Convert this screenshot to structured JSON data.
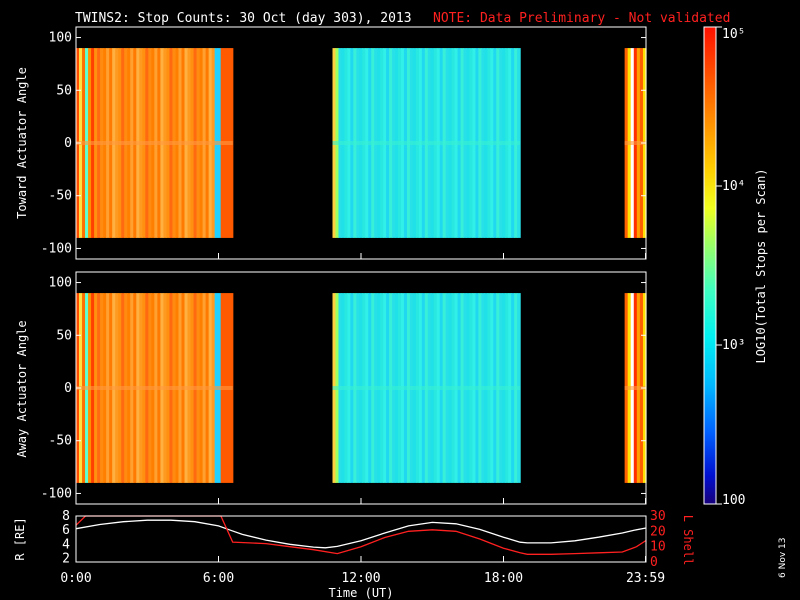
{
  "title": "TWINS2: Stop Counts: 30 Oct (day 303), 2013",
  "note": "NOTE: Data Preliminary - Not validated",
  "date_stamp": "6 Nov 13",
  "colors": {
    "background": "#000000",
    "axes": "#ffffff",
    "note": "#ff2020",
    "r_line": "#ffffff",
    "l_line": "#ff2020"
  },
  "colorbar": {
    "label": "LOG10(Total Stops per Scan)",
    "ticks": [
      {
        "text": "10⁵",
        "value": 100000
      },
      {
        "text": "10⁴",
        "value": 10000
      },
      {
        "text": "10³",
        "value": 1000
      },
      {
        "text": "100",
        "value": 100
      }
    ],
    "range": [
      100,
      100000
    ],
    "scale": "log"
  },
  "chart_data": [
    {
      "type": "heatmap",
      "ylabel": "Toward Actuator Angle",
      "ylim": [
        -110,
        110
      ],
      "yticks": [
        "100",
        "50",
        "0",
        "-50",
        "-100"
      ],
      "data_blocks": [
        {
          "start_h": 0.0,
          "end_h": 6.6,
          "level": "10⁴–10⁵"
        },
        {
          "start_h": 10.8,
          "end_h": 18.7,
          "level": "≈10³"
        },
        {
          "start_h": 23.1,
          "end_h": 24.0,
          "level": "10⁴–10⁵"
        }
      ]
    },
    {
      "type": "heatmap",
      "ylabel": "Away Actuator Angle",
      "ylim": [
        -110,
        110
      ],
      "yticks": [
        "100",
        "50",
        "0",
        "-50",
        "-100"
      ],
      "data_blocks": [
        {
          "start_h": 0.0,
          "end_h": 6.6,
          "level": "10⁴–10⁵"
        },
        {
          "start_h": 10.8,
          "end_h": 18.7,
          "level": "≈10³"
        },
        {
          "start_h": 23.1,
          "end_h": 24.0,
          "level": "10⁴–10⁵"
        }
      ]
    },
    {
      "type": "line",
      "xlabel": "Time (UT)",
      "ylabel_left": "R [RE]",
      "ylabel_right": "L Shell",
      "yticks_left": [
        "8",
        "6",
        "4",
        "2"
      ],
      "yticks_right": [
        "30",
        "20",
        "10",
        "0"
      ],
      "ylim_left": [
        1.5,
        8
      ],
      "ylim_right": [
        0,
        30
      ],
      "xlim": [
        0,
        24
      ],
      "xticks": [
        "0:00",
        "6:00",
        "12:00",
        "18:00",
        "23:59"
      ],
      "series": [
        {
          "axis": "left",
          "x": [
            0,
            1,
            2,
            3,
            4,
            5,
            6,
            6.5,
            7,
            8,
            9,
            10,
            10.5,
            11,
            12,
            13,
            14,
            15,
            16,
            17,
            18,
            18.7,
            19,
            20,
            21,
            22,
            23,
            23.5,
            24
          ],
          "y": [
            6.2,
            6.8,
            7.2,
            7.4,
            7.4,
            7.2,
            6.6,
            6.0,
            5.4,
            4.6,
            4.0,
            3.6,
            3.5,
            3.7,
            4.5,
            5.6,
            6.6,
            7.1,
            6.9,
            6.1,
            5.0,
            4.3,
            4.2,
            4.2,
            4.5,
            5.0,
            5.6,
            6.0,
            6.3
          ]
        },
        {
          "axis": "right",
          "x": [
            0.0,
            0.4,
            6.1,
            6.6,
            8,
            9,
            10,
            11,
            12,
            13,
            14,
            15,
            16,
            17,
            18,
            18.7,
            19,
            20,
            21,
            22,
            23,
            23.6,
            24
          ],
          "y": [
            24,
            30,
            30,
            13,
            12,
            10,
            8,
            5.5,
            10,
            16,
            20,
            21,
            20,
            15,
            9,
            6,
            5,
            5,
            5.5,
            6,
            6.5,
            10,
            14
          ]
        }
      ]
    }
  ]
}
